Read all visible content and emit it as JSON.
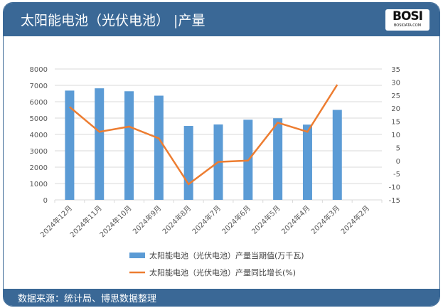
{
  "header": {
    "title": "太阳能电池（光伏电池） |产量",
    "logo_text": "BOSI",
    "logo_sub": "BOSIDATA.COM"
  },
  "footer": {
    "source": "数据来源：统计局、博思数据整理"
  },
  "colors": {
    "bar": "#5b9bd5",
    "line": "#ed7d31",
    "header": "#3a6896"
  },
  "chart_data": {
    "type": "bar+line",
    "categories": [
      "2024年12月",
      "2024年11月",
      "2024年10月",
      "2024年9月",
      "2024年8月",
      "2024年7月",
      "2024年6月",
      "2024年5月",
      "2024年4月",
      "2024年3月",
      "2024年2月"
    ],
    "series": [
      {
        "name": "太阳能电池（光伏电池）产量当期值(万千瓦)",
        "type": "bar",
        "axis": "left",
        "values": [
          6680,
          6820,
          6640,
          6370,
          4520,
          4610,
          4900,
          4990,
          4600,
          5500,
          null
        ]
      },
      {
        "name": "太阳能电池（光伏电池）产量同比增长(%)",
        "type": "line",
        "axis": "right",
        "values": [
          20.5,
          11,
          13,
          8.5,
          -9,
          -0.5,
          0,
          14.5,
          11,
          29,
          null
        ]
      }
    ],
    "ylim": [
      0,
      8000
    ],
    "yticks": [
      0,
      1000,
      2000,
      3000,
      4000,
      5000,
      6000,
      7000,
      8000
    ],
    "y2lim": [
      -15,
      35
    ],
    "y2ticks": [
      -15,
      -10,
      -5,
      0,
      5,
      10,
      15,
      20,
      25,
      30,
      35
    ],
    "grid": true,
    "legend": "bottom"
  }
}
